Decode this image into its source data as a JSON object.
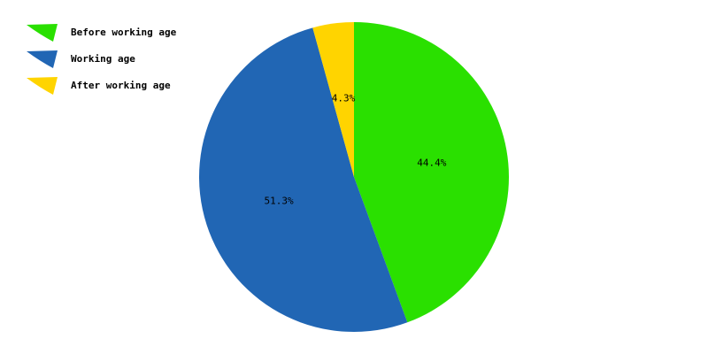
{
  "chart_data": {
    "type": "pie",
    "categories": [
      "Before working age",
      "Working age",
      "After working age"
    ],
    "values": [
      44.4,
      51.3,
      4.3
    ],
    "value_labels": [
      "44.4%",
      "51.3%",
      "4.3%"
    ],
    "colors": [
      "#2ae000",
      "#2166b4",
      "#ffd400"
    ],
    "legend_position": "top-left",
    "start_angle": "12 o'clock",
    "direction": "clockwise"
  }
}
